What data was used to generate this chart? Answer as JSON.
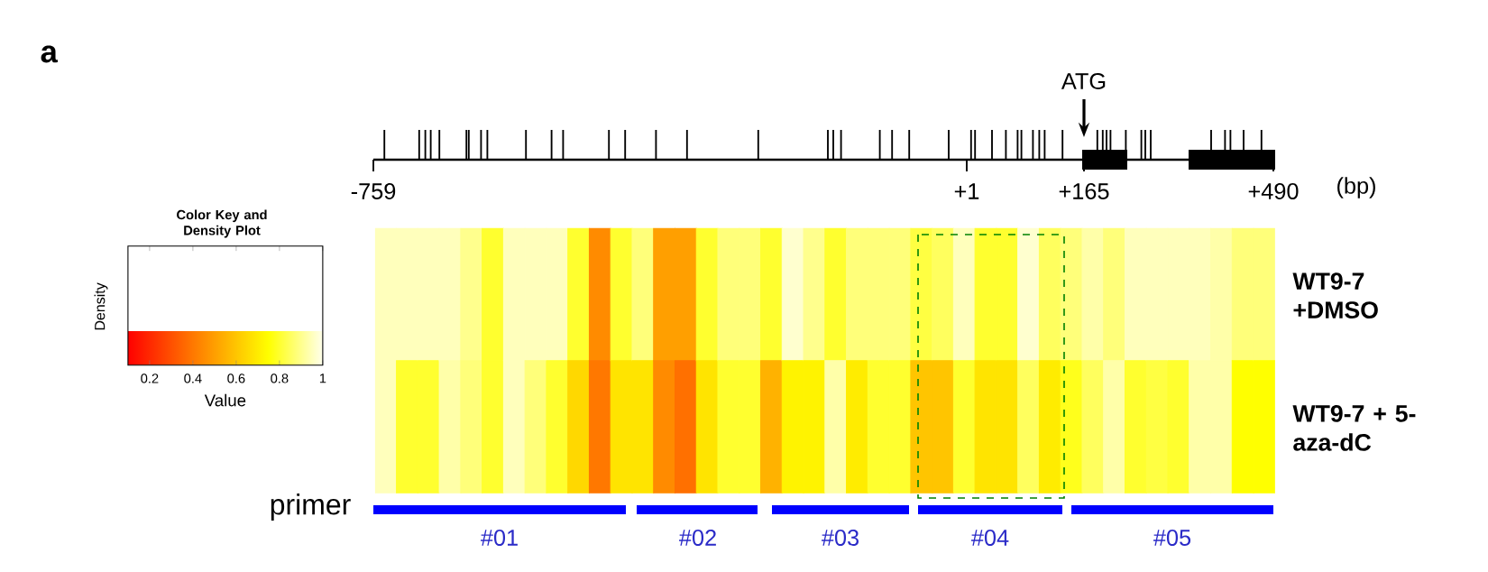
{
  "chart_data": {
    "type": "heatmap",
    "categories": [
      null,
      null,
      null,
      null,
      null,
      null,
      null,
      null,
      null,
      null,
      null,
      null,
      null,
      null,
      null,
      null,
      null,
      null,
      null,
      null,
      null,
      null,
      null,
      null,
      null,
      null,
      null,
      null,
      null,
      null,
      null,
      null,
      null,
      null,
      null,
      null,
      null,
      null,
      null,
      null,
      null,
      null
    ],
    "y_categories": [
      null,
      null
    ],
    "y2_categories": [
      "WT9-7 +DMSO",
      "WT9-7 + 5-aza-dC"
    ],
    "cells": [
      [
        0.95,
        0.95,
        0.95,
        0.95,
        0.9,
        0.8,
        0.95,
        0.95,
        0.95,
        0.8,
        0.45,
        0.8,
        0.88,
        0.5,
        0.5,
        0.8,
        0.88,
        0.88,
        0.8,
        0.97,
        0.9,
        0.8,
        0.88,
        0.88,
        0.88,
        0.82,
        0.85,
        0.95,
        0.8,
        0.8,
        0.97,
        0.85,
        0.88,
        0.93,
        0.88,
        0.95,
        0.95,
        0.95,
        0.95,
        0.93,
        0.88,
        0.88
      ],
      [
        0.95,
        0.8,
        0.8,
        0.93,
        0.88,
        0.8,
        0.95,
        0.88,
        0.8,
        0.65,
        0.4,
        0.68,
        0.68,
        0.45,
        0.38,
        0.68,
        0.8,
        0.8,
        0.55,
        0.72,
        0.72,
        0.93,
        0.7,
        0.8,
        0.8,
        0.6,
        0.6,
        0.8,
        0.68,
        0.68,
        0.85,
        0.7,
        0.78,
        0.85,
        0.93,
        0.8,
        0.82,
        0.8,
        0.93,
        0.93,
        0.75,
        0.75
      ]
    ],
    "clim": [
      0.1,
      1
    ],
    "cticks": [
      0.2,
      0.4,
      0.6,
      0.8,
      1
    ],
    "clabel": "Value",
    "annotations": [
      "a",
      "ATG",
      "-759",
      "+1",
      "+165",
      "+490",
      "(bp)",
      "primer",
      "#01",
      "#02",
      "#03",
      "#04",
      "#05",
      "Color Key and Density Plot",
      "Density"
    ]
  }
}
